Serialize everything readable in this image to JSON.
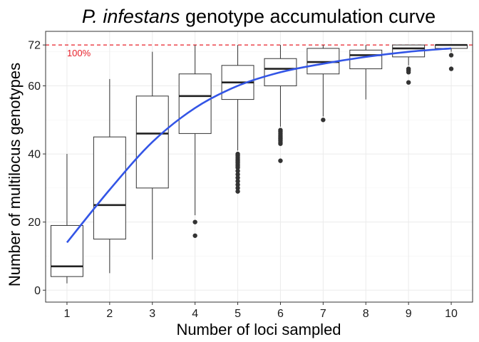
{
  "chart_data": {
    "type": "boxplot",
    "title_italic": "P. infestans",
    "title_rest": " genotype accumulation curve",
    "xlabel": "Number of loci sampled",
    "ylabel": "Number of multilocus genotypes",
    "categories": [
      "1",
      "2",
      "3",
      "4",
      "5",
      "6",
      "7",
      "8",
      "9",
      "10"
    ],
    "ylim": [
      -3.5,
      76
    ],
    "yticks": [
      0,
      20,
      40,
      60,
      72
    ],
    "ytick_labels": [
      "0",
      "20",
      "40",
      "60",
      "72"
    ],
    "grid": true,
    "boxes": [
      {
        "x": "1",
        "min": 2,
        "q1": 4,
        "median": 7,
        "q3": 19,
        "max": 40,
        "outliers": []
      },
      {
        "x": "2",
        "min": 5,
        "q1": 15,
        "median": 25,
        "q3": 45,
        "max": 62,
        "outliers": []
      },
      {
        "x": "3",
        "min": 9,
        "q1": 30,
        "median": 46,
        "q3": 57,
        "max": 70,
        "outliers": []
      },
      {
        "x": "4",
        "min": 22,
        "q1": 46,
        "median": 57,
        "q3": 63.5,
        "max": 72,
        "outliers": [
          20,
          16
        ]
      },
      {
        "x": "5",
        "min": 41,
        "q1": 56,
        "median": 61,
        "q3": 66,
        "max": 72,
        "outliers": [
          40,
          39.5,
          39,
          38.5,
          38,
          37.5,
          37,
          36.5,
          36,
          35,
          34,
          33,
          32,
          31,
          30,
          29
        ]
      },
      {
        "x": "6",
        "min": 48,
        "q1": 60,
        "median": 65,
        "q3": 68,
        "max": 72,
        "outliers": [
          47,
          46.5,
          46,
          45.5,
          45,
          44.5,
          44,
          43.5,
          43,
          38
        ]
      },
      {
        "x": "7",
        "min": 51,
        "q1": 63.5,
        "median": 67,
        "q3": 71,
        "max": 72,
        "outliers": [
          50
        ]
      },
      {
        "x": "8",
        "min": 56,
        "q1": 65,
        "median": 69,
        "q3": 70.5,
        "max": 72,
        "outliers": []
      },
      {
        "x": "9",
        "min": 66,
        "q1": 68.5,
        "median": 71,
        "q3": 72,
        "max": 72,
        "outliers": [
          65,
          64.5,
          64,
          61
        ]
      },
      {
        "x": "10",
        "min": 70,
        "q1": 71,
        "median": 72,
        "q3": 72,
        "max": 72,
        "outliers": [
          69,
          65
        ]
      }
    ],
    "mean_curve": {
      "x": [
        1,
        2,
        3,
        4,
        5,
        6,
        7,
        8,
        9,
        10
      ],
      "y": [
        14,
        29.5,
        43.5,
        53.5,
        60,
        64,
        66.5,
        68.5,
        70,
        71
      ]
    },
    "reference_line": {
      "y": 72,
      "label": "100%"
    },
    "colors": {
      "curve": "#3355e6",
      "reference": "#e8202a",
      "box_stroke": "#333333",
      "grid": "#ebebeb",
      "panel_border": "#333333"
    }
  }
}
